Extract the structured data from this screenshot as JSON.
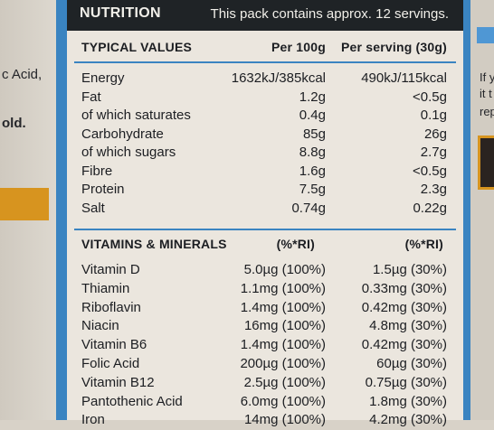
{
  "left_panel": {
    "lines": [
      "c Acid,",
      "old."
    ]
  },
  "right_panel": {
    "lines": [
      "If y",
      "it t",
      "rep"
    ]
  },
  "header": {
    "title": "NUTRITION",
    "subtitle": "This pack contains approx. 12 servings."
  },
  "typical": {
    "heading": "TYPICAL VALUES",
    "col1": "Per 100g",
    "col2": "Per serving (30g)",
    "rows": [
      {
        "name": "Energy",
        "per100": "1632kJ/385kcal",
        "serving": "490kJ/115kcal"
      },
      {
        "name": "Fat",
        "per100": "1.2g",
        "serving": "<0.5g"
      },
      {
        "name": "of which saturates",
        "per100": "0.4g",
        "serving": "0.1g"
      },
      {
        "name": "Carbohydrate",
        "per100": "85g",
        "serving": "26g"
      },
      {
        "name": "of which sugars",
        "per100": "8.8g",
        "serving": "2.7g"
      },
      {
        "name": "Fibre",
        "per100": "1.6g",
        "serving": "<0.5g"
      },
      {
        "name": "Protein",
        "per100": "7.5g",
        "serving": "2.3g"
      },
      {
        "name": "Salt",
        "per100": "0.74g",
        "serving": "0.22g"
      }
    ]
  },
  "vitamins": {
    "heading": "VITAMINS & MINERALS",
    "col1": "(%*RI)",
    "col2": "(%*RI)",
    "rows": [
      {
        "name": "Vitamin D",
        "per100": "5.0µg (100%)",
        "serving": "1.5µg (30%)"
      },
      {
        "name": "Thiamin",
        "per100": "1.1mg (100%)",
        "serving": "0.33mg (30%)"
      },
      {
        "name": "Riboflavin",
        "per100": "1.4mg (100%)",
        "serving": "0.42mg (30%)"
      },
      {
        "name": "Niacin",
        "per100": "16mg (100%)",
        "serving": "4.8mg (30%)"
      },
      {
        "name": "Vitamin B6",
        "per100": "1.4mg (100%)",
        "serving": "0.42mg (30%)"
      },
      {
        "name": "Folic Acid",
        "per100": "200µg (100%)",
        "serving": "60µg (30%)"
      },
      {
        "name": "Vitamin B12",
        "per100": "2.5µg (100%)",
        "serving": "0.75µg (30%)"
      },
      {
        "name": "Pantothenic Acid",
        "per100": "6.0mg (100%)",
        "serving": "1.8mg (30%)"
      },
      {
        "name": "Iron",
        "per100": "14mg (100%)",
        "serving": "4.2mg (30%)"
      }
    ]
  },
  "colors": {
    "frame_blue": "#3a84c1",
    "header_dark": "#1f2326",
    "panel_bg": "#ebe6de",
    "accent_orange": "#d7941f"
  }
}
